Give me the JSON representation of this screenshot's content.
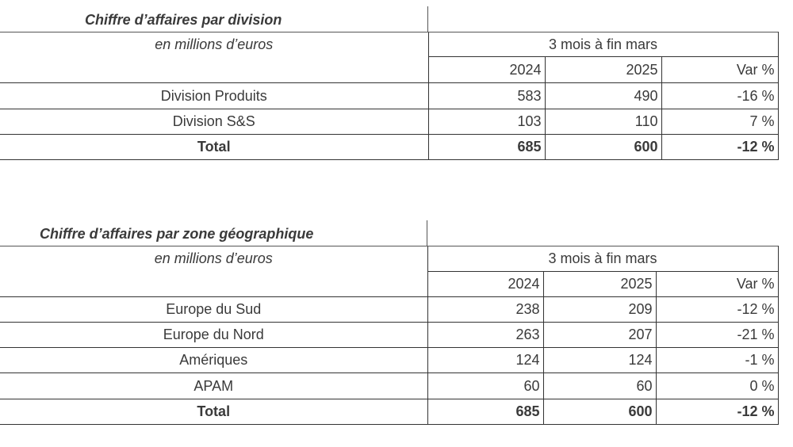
{
  "tables": [
    {
      "title": "Chiffre d’affaires par division",
      "subtitle": "en millions d’euros",
      "period": "3 mois à fin mars",
      "columns": [
        "2024",
        "2025",
        "Var %"
      ],
      "rows": [
        {
          "label": "Division Produits",
          "v2024": "583",
          "v2025": "490",
          "var": "-16 %"
        },
        {
          "label": "Division S&S",
          "v2024": "103",
          "v2025": "110",
          "var": "7 %"
        }
      ],
      "total": {
        "label": "Total",
        "v2024": "685",
        "v2025": "600",
        "var": "-12 %"
      }
    },
    {
      "title": "Chiffre d’affaires par zone géographique",
      "subtitle": "en millions d’euros",
      "period": "3 mois à fin mars",
      "columns": [
        "2024",
        "2025",
        "Var %"
      ],
      "rows": [
        {
          "label": "Europe du Sud",
          "v2024": "238",
          "v2025": "209",
          "var": "-12 %"
        },
        {
          "label": "Europe du Nord",
          "v2024": "263",
          "v2025": "207",
          "var": "-21 %"
        },
        {
          "label": "Amériques",
          "v2024": "124",
          "v2025": "124",
          "var": "-1 %"
        },
        {
          "label": "APAM",
          "v2024": "60",
          "v2025": "60",
          "var": "0 %"
        }
      ],
      "total": {
        "label": "Total",
        "v2024": "685",
        "v2025": "600",
        "var": "-12 %"
      }
    }
  ]
}
